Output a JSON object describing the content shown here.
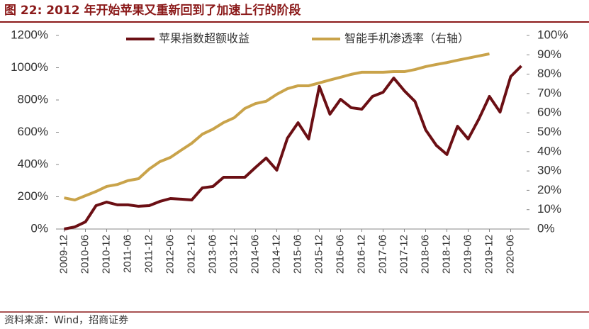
{
  "chart_data": {
    "type": "line",
    "title": "图 22:  2012 年开始苹果又重新回到了加速上行的阶段",
    "source": "资料来源：Wind，招商证券",
    "categories": [
      "2009-12",
      null,
      "2010-06",
      null,
      "2010-12",
      null,
      "2011-06",
      null,
      "2011-12",
      null,
      "2012-06",
      null,
      "2012-12",
      null,
      "2013-06",
      null,
      "2013-12",
      null,
      "2014-06",
      null,
      "2014-12",
      null,
      "2015-06",
      null,
      "2015-12",
      null,
      "2016-06",
      null,
      "2016-12",
      null,
      "2017-06",
      null,
      "2017-12",
      null,
      "2018-06",
      null,
      "2018-12",
      null,
      "2019-06",
      null,
      "2019-12",
      null,
      "2020-06",
      null
    ],
    "series": [
      {
        "name": "苹果指数超额收益",
        "color": "#6b0f14",
        "values": [
          0,
          13,
          44,
          145,
          167,
          150,
          150,
          141,
          145,
          171,
          189,
          185,
          180,
          255,
          264,
          321,
          321,
          321,
          382,
          440,
          365,
          563,
          659,
          558,
          884,
          712,
          804,
          752,
          743,
          822,
          848,
          936,
          857,
          791,
          615,
          519,
          462,
          637,
          558,
          681,
          822,
          725,
          945,
          1011
        ]
      },
      {
        "name": "智能手机渗透率（右轴）",
        "color": "#c9a34a",
        "axis": "y2",
        "values": [
          16.1,
          15,
          17.2,
          19.4,
          22,
          23,
          25,
          26,
          31,
          34.8,
          37,
          40.7,
          44.3,
          49,
          51.6,
          55,
          57.5,
          62.3,
          64.8,
          66,
          69.6,
          72.5,
          74,
          74,
          75.5,
          77,
          78.4,
          79.9,
          81,
          81,
          81,
          81.3,
          81.3,
          82.4,
          83.9,
          85,
          86,
          87.2,
          88.3,
          89.4,
          90.5,
          null,
          null,
          null
        ]
      }
    ],
    "ylim": [
      0,
      1200
    ],
    "yticks": [
      {
        "value": 0,
        "label": "0%"
      },
      {
        "value": 200,
        "label": "200%"
      },
      {
        "value": 400,
        "label": "400%"
      },
      {
        "value": 600,
        "label": "600%"
      },
      {
        "value": 800,
        "label": "800%"
      },
      {
        "value": 1000,
        "label": "1000%"
      },
      {
        "value": 1200,
        "label": "1200%"
      }
    ],
    "y2lim": [
      0,
      100
    ],
    "y2ticks": [
      {
        "value": 0,
        "label": "0%"
      },
      {
        "value": 10,
        "label": "10%"
      },
      {
        "value": 20,
        "label": "20%"
      },
      {
        "value": 30,
        "label": "30%"
      },
      {
        "value": 40,
        "label": "40%"
      },
      {
        "value": 50,
        "label": "50%"
      },
      {
        "value": 60,
        "label": "60%"
      },
      {
        "value": 70,
        "label": "70%"
      },
      {
        "value": 80,
        "label": "80%"
      },
      {
        "value": 90,
        "label": "90%"
      },
      {
        "value": 100,
        "label": "100%"
      }
    ],
    "grid": false
  }
}
